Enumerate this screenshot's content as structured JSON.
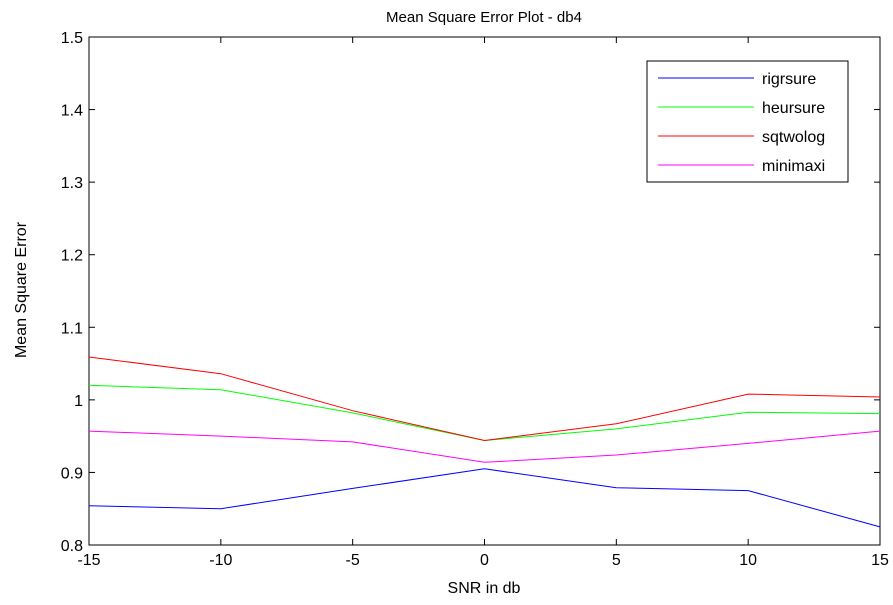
{
  "chart_data": {
    "type": "line",
    "title": "Mean Square Error  Plot - db4",
    "xlabel": "SNR in db",
    "ylabel": "Mean Square Error",
    "x": [
      -15,
      -10,
      -5,
      0,
      5,
      10,
      15
    ],
    "xlim": [
      -15,
      15
    ],
    "ylim": [
      0.8,
      1.5
    ],
    "xticks": [
      "-15",
      "-10",
      "-5",
      "0",
      "5",
      "10",
      "15"
    ],
    "yticks": [
      "0.8",
      "0.9",
      "1",
      "1.1",
      "1.2",
      "1.3",
      "1.4",
      "1.5"
    ],
    "grid": false,
    "legend_position": "top-right",
    "series": [
      {
        "name": "rigrsure",
        "color": "#0000ff",
        "values": [
          0.854,
          0.85,
          0.878,
          0.905,
          0.879,
          0.875,
          0.825
        ]
      },
      {
        "name": "heursure",
        "color": "#00ff00",
        "values": [
          1.02,
          1.014,
          0.982,
          0.944,
          0.96,
          0.983,
          0.981
        ]
      },
      {
        "name": "sqtwolog",
        "color": "#ff0000",
        "values": [
          1.059,
          1.036,
          0.985,
          0.944,
          0.967,
          1.008,
          1.004
        ]
      },
      {
        "name": "minimaxi",
        "color": "#ff00ff",
        "values": [
          0.957,
          0.95,
          0.942,
          0.914,
          0.924,
          0.94,
          0.957
        ]
      }
    ]
  }
}
